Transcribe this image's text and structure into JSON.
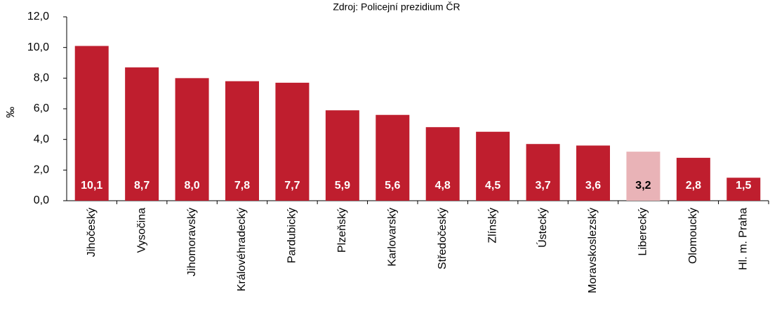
{
  "chart_data": {
    "type": "bar",
    "title": "Zdroj: Policejní prezidium ČR",
    "ylabel": "‰",
    "categories": [
      "Jihočeský",
      "Vysočina",
      "Jihomoravský",
      "Královéhradecký",
      "Pardubický",
      "Plzeňský",
      "Karlovarský",
      "Středočeský",
      "Zlínský",
      "Ústecký",
      "Moravskoslezský",
      "Liberecký",
      "Olomoucký",
      "Hl. m. Praha"
    ],
    "values": [
      10.1,
      8.7,
      8.0,
      7.8,
      7.7,
      5.9,
      5.6,
      4.8,
      4.5,
      3.7,
      3.6,
      3.2,
      2.8,
      1.5
    ],
    "value_labels": [
      "10,1",
      "8,7",
      "8,0",
      "7,8",
      "7,7",
      "5,9",
      "5,6",
      "4,8",
      "4,5",
      "3,7",
      "3,6",
      "3,2",
      "2,8",
      "1,5"
    ],
    "colors": [
      "#bf1e2e",
      "#bf1e2e",
      "#bf1e2e",
      "#bf1e2e",
      "#bf1e2e",
      "#bf1e2e",
      "#bf1e2e",
      "#bf1e2e",
      "#bf1e2e",
      "#bf1e2e",
      "#bf1e2e",
      "#e9b3b7",
      "#bf1e2e",
      "#bf1e2e"
    ],
    "ylim": [
      0,
      12
    ],
    "yticks": [
      {
        "value": 0,
        "label": "0,0"
      },
      {
        "value": 2,
        "label": "2,0"
      },
      {
        "value": 4,
        "label": "4,0"
      },
      {
        "value": 6,
        "label": "6,0"
      },
      {
        "value": 8,
        "label": "8,0"
      },
      {
        "value": 10,
        "label": "10,0"
      },
      {
        "value": 12,
        "label": "12,0"
      }
    ]
  }
}
